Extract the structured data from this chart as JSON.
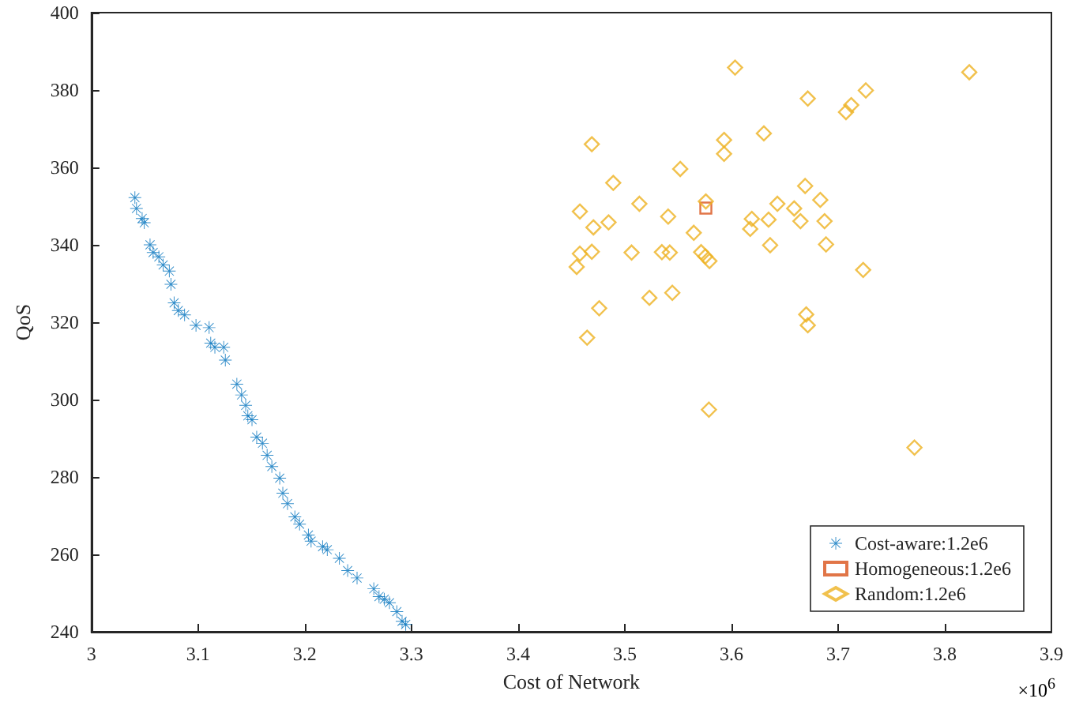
{
  "chart_data": {
    "type": "scatter",
    "xlabel": "Cost of Network",
    "ylabel": "QoS",
    "annotations": [
      "×10$^{6}$"
    ],
    "xlim": [
      3,
      3.9
    ],
    "xticks": [
      3,
      3.1,
      3.2,
      3.3,
      3.4,
      3.5,
      3.6,
      3.7,
      3.8,
      3.9
    ],
    "ylim": [
      240,
      400
    ],
    "yticks": [
      240,
      260,
      280,
      300,
      320,
      340,
      360,
      380,
      400
    ],
    "grid": false,
    "legend": "bottom right",
    "series": [
      {
        "name": "Cost-aware:1.2e6",
        "color": "#0072bd",
        "marker": "star",
        "x": [
          3.0407,
          3.0422,
          3.0475,
          3.0495,
          3.0549,
          3.0578,
          3.0632,
          3.0672,
          3.073,
          3.0745,
          3.0775,
          3.0814,
          3.0873,
          3.098,
          3.1103,
          3.1118,
          3.1157,
          3.124,
          3.1255,
          3.1363,
          3.1407,
          3.1446,
          3.1466,
          3.1505,
          3.1549,
          3.1603,
          3.1647,
          3.1691,
          3.1765,
          3.1794,
          3.1838,
          3.1907,
          3.1951,
          3.2034,
          3.2059,
          3.2167,
          3.2211,
          3.2324,
          3.2402,
          3.249,
          3.2647,
          3.2696,
          3.2745,
          3.2794,
          3.2863,
          3.2912,
          3.2946
        ],
        "values": [
          352.2,
          349.4,
          346.8,
          345.7,
          340,
          338,
          336.9,
          334.8,
          333.2,
          329.8,
          325,
          323,
          321.9,
          319.2,
          318.6,
          314.6,
          313.5,
          313.5,
          310.2,
          304,
          301.2,
          298.5,
          295.8,
          294.8,
          290.3,
          288.7,
          285.6,
          282.7,
          279.7,
          275.8,
          273.1,
          269.7,
          267.8,
          265,
          263.4,
          262,
          261.2,
          259,
          255.8,
          253.9,
          251.1,
          249.1,
          248.4,
          247.5,
          245.2,
          242.7,
          241.9
        ]
      },
      {
        "name": "Homogeneous:1.2e6",
        "color": "#d95319",
        "marker": "square",
        "x": [
          3.576
        ],
        "values": [
          349.5
        ]
      },
      {
        "name": "Random:1.2e6",
        "color": "#edb120",
        "marker": "diamond",
        "x": [
          3.6034,
          3.6716,
          3.4691,
          3.5931,
          3.5931,
          3.6304,
          3.552,
          3.4892,
          3.6691,
          3.6833,
          3.6431,
          3.6588,
          3.5137,
          3.4579,
          3.5407,
          3.6647,
          3.6873,
          3.6191,
          3.6348,
          3.4848,
          3.4706,
          3.6176,
          3.5647,
          3.6363,
          3.6887,
          3.4579,
          3.4691,
          3.5064,
          3.5348,
          3.5422,
          3.5716,
          3.5755,
          3.5794,
          3.4549,
          3.5231,
          3.5446,
          3.476,
          3.6701,
          3.6716,
          3.4647,
          3.5789,
          3.576,
          3.823,
          3.726,
          3.7123,
          3.7074,
          3.7235,
          3.7716
        ],
        "values": [
          385.8,
          377.8,
          366,
          367.1,
          363.5,
          368.8,
          359.6,
          356,
          355.2,
          351.6,
          350.6,
          349.4,
          350.6,
          348.6,
          347.3,
          346.1,
          346.1,
          346.7,
          346.5,
          345.8,
          344.5,
          344.1,
          343.1,
          339.9,
          340.1,
          337.7,
          338.2,
          338,
          338.1,
          338,
          338.1,
          337,
          335.8,
          334.3,
          326.3,
          327.6,
          323.6,
          322,
          319.2,
          316,
          297.4,
          351.2,
          384.6,
          379.9,
          376.1,
          374.3,
          333.5,
          287.6
        ]
      }
    ]
  }
}
